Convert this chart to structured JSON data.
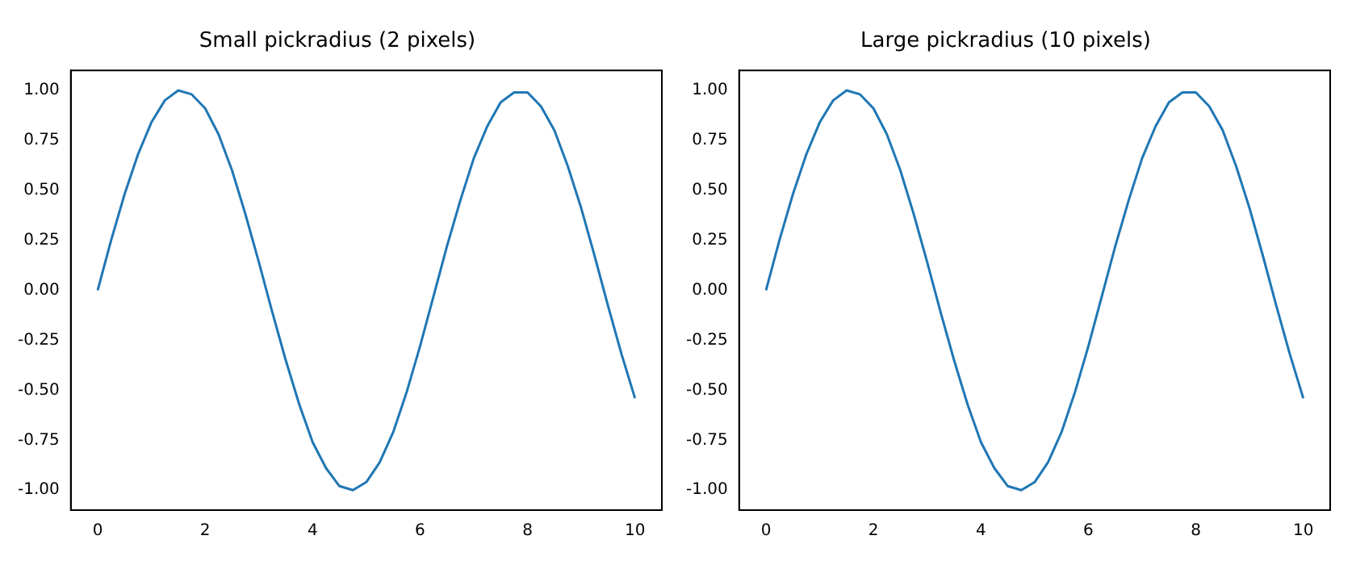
{
  "chart_data": [
    {
      "type": "line",
      "title": "Small pickradius (2 pixels)",
      "x": [
        0,
        0.25,
        0.5,
        0.75,
        1,
        1.25,
        1.5,
        1.75,
        2,
        2.25,
        2.5,
        2.75,
        3,
        3.25,
        3.5,
        3.75,
        4,
        4.25,
        4.5,
        4.75,
        5,
        5.25,
        5.5,
        5.75,
        6,
        6.25,
        6.5,
        6.75,
        7,
        7.25,
        7.5,
        7.75,
        8,
        8.25,
        8.5,
        8.75,
        9,
        9.25,
        9.5,
        9.75,
        10
      ],
      "series": [
        {
          "color": "#1f77b4",
          "values": [
            0,
            0.25,
            0.48,
            0.68,
            0.84,
            0.95,
            1.0,
            0.98,
            0.91,
            0.78,
            0.6,
            0.38,
            0.14,
            -0.11,
            -0.35,
            -0.57,
            -0.76,
            -0.89,
            -0.98,
            -1.0,
            -0.96,
            -0.86,
            -0.71,
            -0.51,
            -0.28,
            -0.03,
            0.22,
            0.45,
            0.66,
            0.82,
            0.94,
            0.99,
            0.99,
            0.92,
            0.8,
            0.62,
            0.41,
            0.17,
            -0.08,
            -0.32,
            -0.54
          ]
        }
      ],
      "xlim": [
        -0.5,
        10.5
      ],
      "xticks": [
        0,
        2,
        4,
        6,
        8,
        10
      ],
      "ylim": [
        -1.1,
        1.1
      ],
      "yticks": [
        {
          "value": -1,
          "label": "-1.00"
        },
        {
          "value": -0.75,
          "label": "-0.75"
        },
        {
          "value": -0.5,
          "label": "-0.50"
        },
        {
          "value": -0.25,
          "label": "-0.25"
        },
        {
          "value": 0,
          "label": "0.00"
        },
        {
          "value": 0.25,
          "label": "0.25"
        },
        {
          "value": 0.5,
          "label": "0.50"
        },
        {
          "value": 0.75,
          "label": "0.75"
        },
        {
          "value": 1,
          "label": "1.00"
        }
      ]
    },
    {
      "type": "line",
      "title": "Large pickradius (10 pixels)",
      "x": [
        0,
        0.25,
        0.5,
        0.75,
        1,
        1.25,
        1.5,
        1.75,
        2,
        2.25,
        2.5,
        2.75,
        3,
        3.25,
        3.5,
        3.75,
        4,
        4.25,
        4.5,
        4.75,
        5,
        5.25,
        5.5,
        5.75,
        6,
        6.25,
        6.5,
        6.75,
        7,
        7.25,
        7.5,
        7.75,
        8,
        8.25,
        8.5,
        8.75,
        9,
        9.25,
        9.5,
        9.75,
        10
      ],
      "series": [
        {
          "color": "#1f77b4",
          "values": [
            0,
            0.25,
            0.48,
            0.68,
            0.84,
            0.95,
            1.0,
            0.98,
            0.91,
            0.78,
            0.6,
            0.38,
            0.14,
            -0.11,
            -0.35,
            -0.57,
            -0.76,
            -0.89,
            -0.98,
            -1.0,
            -0.96,
            -0.86,
            -0.71,
            -0.51,
            -0.28,
            -0.03,
            0.22,
            0.45,
            0.66,
            0.82,
            0.94,
            0.99,
            0.99,
            0.92,
            0.8,
            0.62,
            0.41,
            0.17,
            -0.08,
            -0.32,
            -0.54
          ]
        }
      ],
      "xlim": [
        -0.5,
        10.5
      ],
      "xticks": [
        0,
        2,
        4,
        6,
        8,
        10
      ],
      "ylim": [
        -1.1,
        1.1
      ],
      "yticks": [
        {
          "value": -1,
          "label": "-1.00"
        },
        {
          "value": -0.75,
          "label": "-0.75"
        },
        {
          "value": -0.5,
          "label": "-0.50"
        },
        {
          "value": -0.25,
          "label": "-0.25"
        },
        {
          "value": 0,
          "label": "0.00"
        },
        {
          "value": 0.25,
          "label": "0.25"
        },
        {
          "value": 0.5,
          "label": "0.50"
        },
        {
          "value": 0.75,
          "label": "0.75"
        },
        {
          "value": 1,
          "label": "1.00"
        }
      ]
    }
  ]
}
